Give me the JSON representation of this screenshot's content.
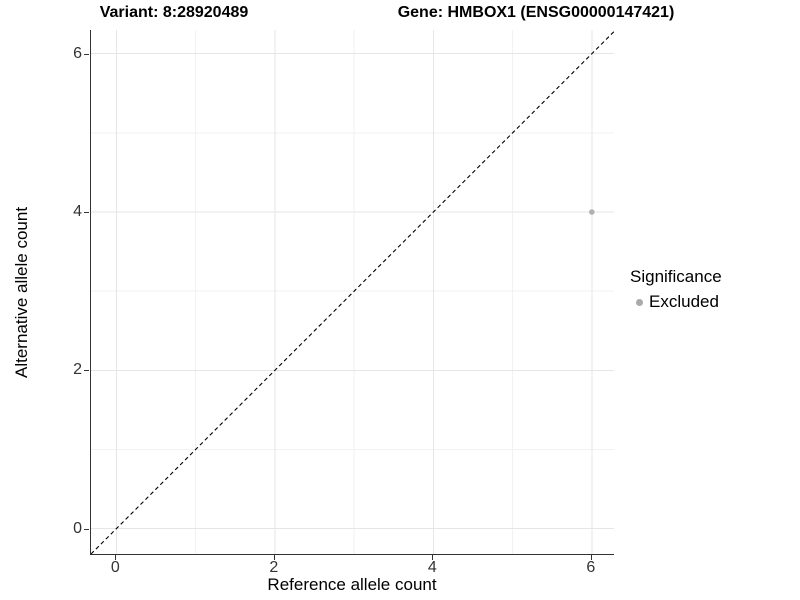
{
  "chart_data": {
    "type": "scatter",
    "titles": {
      "variant": "Variant: 8:28920489",
      "gene": "Gene: HMBOX1 (ENSG00000147421)"
    },
    "xlabel": "Reference allele count",
    "ylabel": "Alternative allele count",
    "xlim": [
      -0.32,
      6.28
    ],
    "ylim": [
      -0.32,
      6.3
    ],
    "x_major_ticks": [
      0,
      2,
      4,
      6
    ],
    "x_minor_ticks": [
      1,
      3,
      5
    ],
    "y_major_ticks": [
      0,
      2,
      4,
      6
    ],
    "y_minor_ticks": [
      1,
      3,
      5
    ],
    "grid": true,
    "identity_line": {
      "style": "dashed",
      "slope": 1,
      "intercept": 0,
      "color": "#000000"
    },
    "series": [
      {
        "name": "Excluded",
        "color": "#b1b1b1",
        "point_radius": 2.8,
        "points": [
          {
            "x": 6,
            "y": 4
          }
        ]
      }
    ],
    "legend": {
      "position": "right",
      "title": "Significance",
      "items": [
        {
          "label": "Excluded",
          "color": "#aaaaaa"
        }
      ]
    },
    "colors": {
      "background": "#ffffff",
      "grid_major": "#e6e6e6",
      "grid_minor": "#f2f2f2",
      "axis_line": "#333333",
      "tick_text": "#333333",
      "title_text": "#000000"
    }
  }
}
